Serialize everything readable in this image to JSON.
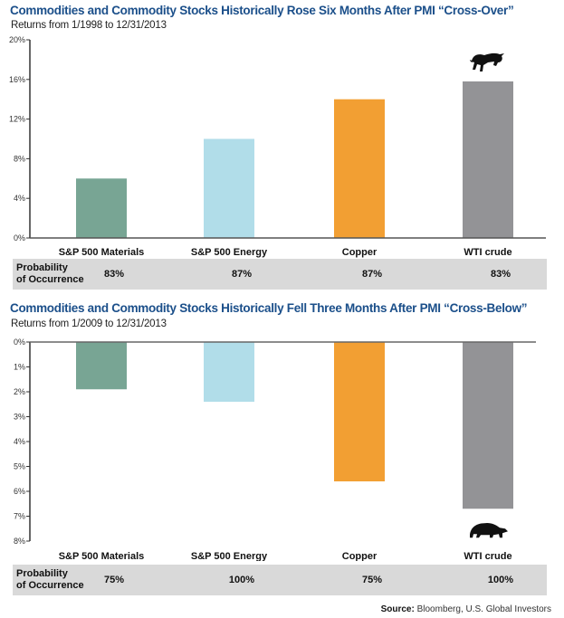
{
  "source": {
    "label": "Source:",
    "text": "Bloomberg, U.S. Global Investors"
  },
  "prob_heading": [
    "Probability",
    "of Occurrence"
  ],
  "chart_data": [
    {
      "type": "bar",
      "title": "Commodities and Commodity Stocks Historically Rose Six Months After PMI “Cross-Over”",
      "subtitle": "Returns from 1/1998 to 12/31/2013",
      "categories": [
        "S&P 500 Materials",
        "S&P 500 Energy",
        "Copper",
        "WTI crude"
      ],
      "values": [
        6.0,
        10.0,
        14.0,
        15.8
      ],
      "probability": [
        "83%",
        "87%",
        "87%",
        "83%"
      ],
      "colors": [
        "#78a594",
        "#b1dde9",
        "#f29f33",
        "#939396"
      ],
      "ylim": [
        0,
        20
      ],
      "yticks": [
        0,
        4,
        8,
        12,
        16,
        20
      ],
      "ytick_labels": [
        "0%",
        "4%",
        "8%",
        "12%",
        "16%",
        "20%"
      ],
      "annotation": "bull-icon over WTI crude",
      "grid": false
    },
    {
      "type": "bar",
      "title": "Commodities and Commodity Stocks Historically Fell Three Months After PMI “Cross-Below”",
      "subtitle": "Returns from 1/2009 to 12/31/2013",
      "categories": [
        "S&P 500 Materials",
        "S&P 500 Energy",
        "Copper",
        "WTI crude"
      ],
      "values": [
        -1.9,
        -2.4,
        -5.6,
        -6.7
      ],
      "probability": [
        "75%",
        "100%",
        "75%",
        "100%"
      ],
      "colors": [
        "#78a594",
        "#b1dde9",
        "#f29f33",
        "#939396"
      ],
      "ylim": [
        -8,
        0
      ],
      "yticks": [
        0,
        1,
        2,
        3,
        4,
        5,
        6,
        7,
        8
      ],
      "ytick_labels": [
        "0%",
        "1%",
        "2%",
        "3%",
        "4%",
        "5%",
        "6%",
        "7%",
        "8%"
      ],
      "annotation": "bear-icon under WTI crude",
      "grid": false
    }
  ]
}
